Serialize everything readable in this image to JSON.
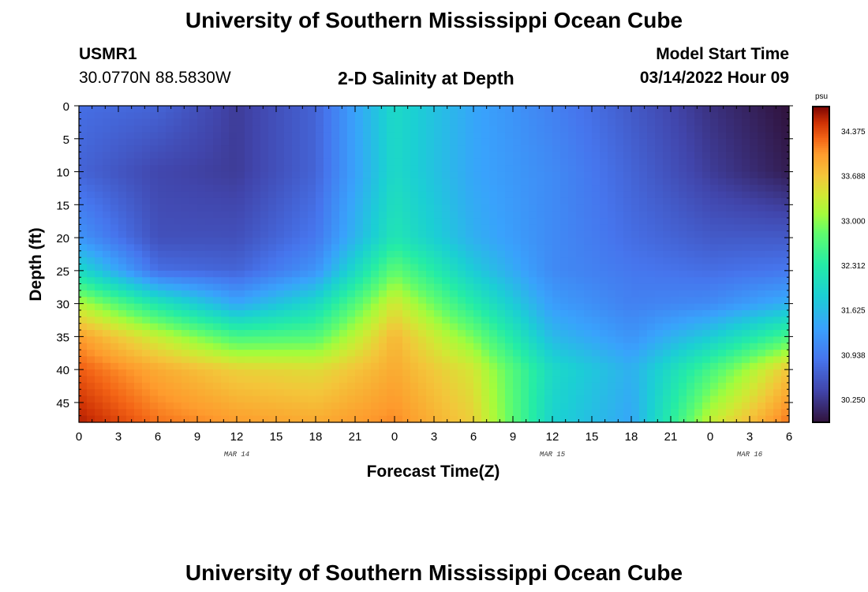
{
  "header": {
    "title": "University of Southern Mississippi Ocean Cube",
    "station_id": "USMR1",
    "coords": "30.0770N  88.5830W",
    "chart_title": "2-D Salinity at Depth",
    "model_label": "Model Start Time",
    "model_time": "03/14/2022 Hour 09"
  },
  "footer": {
    "title": "University of Southern Mississippi Ocean Cube"
  },
  "colorbar": {
    "unit": "psu",
    "min": 29.9,
    "max": 34.75,
    "ticks": [
      "34.375",
      "33.688",
      "33.000",
      "32.312",
      "31.625",
      "30.938",
      "30.250"
    ],
    "tick_values": [
      34.375,
      33.688,
      33.0,
      32.312,
      31.625,
      30.938,
      30.25
    ]
  },
  "chart_data": {
    "type": "heatmap",
    "title": "2-D Salinity at Depth",
    "xlabel": "Forecast Time(Z)",
    "ylabel": "Depth (ft)",
    "units": "psu",
    "x_tick_labels": [
      "0",
      "3",
      "6",
      "9",
      "12",
      "15",
      "18",
      "21",
      "0",
      "3",
      "6",
      "9",
      "12",
      "15",
      "18",
      "21",
      "0",
      "3",
      "6"
    ],
    "x_hours_from_mar14_00z": [
      0,
      3,
      6,
      9,
      12,
      15,
      18,
      21,
      24,
      27,
      30,
      33,
      36,
      39,
      42,
      45,
      48,
      51,
      54
    ],
    "day_labels": [
      {
        "label": "MAR 14",
        "hour": 12
      },
      {
        "label": "MAR 15",
        "hour": 36
      },
      {
        "label": "MAR 16",
        "hour": 51
      }
    ],
    "xlim": [
      0,
      54
    ],
    "y_tick_labels": [
      "0",
      "5",
      "10",
      "15",
      "20",
      "25",
      "30",
      "35",
      "40",
      "45"
    ],
    "y_ticks": [
      0,
      5,
      10,
      15,
      20,
      25,
      30,
      35,
      40,
      45
    ],
    "ylim": [
      0,
      48
    ],
    "sample_hours": [
      0,
      6,
      12,
      18,
      24,
      30,
      36,
      42,
      48,
      54
    ],
    "sample_depths_ft": [
      0,
      10,
      20,
      25,
      30,
      35,
      40,
      48
    ],
    "salinity_psu": [
      [
        30.8,
        30.7,
        30.3,
        30.7,
        32.0,
        31.4,
        31.0,
        30.6,
        30.2,
        29.9
      ],
      [
        30.7,
        30.4,
        30.3,
        30.7,
        32.0,
        31.4,
        31.1,
        30.7,
        30.3,
        30.0
      ],
      [
        31.2,
        30.5,
        30.5,
        30.9,
        32.2,
        31.5,
        31.1,
        30.8,
        30.6,
        30.6
      ],
      [
        32.0,
        30.8,
        30.7,
        31.2,
        32.8,
        31.8,
        31.1,
        30.9,
        30.8,
        30.9
      ],
      [
        33.2,
        32.2,
        31.4,
        32.0,
        33.4,
        32.3,
        31.3,
        31.0,
        31.1,
        31.5
      ],
      [
        34.0,
        33.3,
        32.6,
        32.7,
        33.8,
        32.9,
        31.6,
        31.2,
        31.8,
        32.6
      ],
      [
        34.3,
        33.9,
        33.6,
        33.5,
        33.9,
        33.4,
        32.0,
        31.5,
        32.6,
        33.7
      ],
      [
        34.6,
        34.2,
        34.0,
        33.9,
        34.1,
        33.6,
        31.9,
        31.4,
        33.3,
        34.2
      ]
    ]
  }
}
